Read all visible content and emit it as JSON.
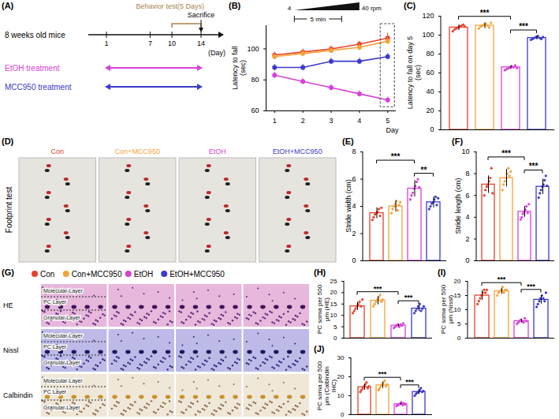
{
  "groups": [
    {
      "name": "Con",
      "color": "#e8412c"
    },
    {
      "name": "Con+MCC950",
      "color": "#f5a23a"
    },
    {
      "name": "EtOH",
      "color": "#d93fd9"
    },
    {
      "name": "EtOH+MCC950",
      "color": "#3b3bcc"
    }
  ],
  "timeline": {
    "panel": "(A)",
    "subject": "8 weeks old mice",
    "days": [
      1,
      7,
      10,
      14
    ],
    "day_label": "(Day)",
    "behavior": "Behavior test(5 Days)",
    "behavior_days": [
      10,
      14
    ],
    "end": "Sacrifice",
    "treatments": [
      {
        "name": "EtOH treatment",
        "color": "#d93fd9",
        "days": [
          1,
          14
        ]
      },
      {
        "name": "MCC950 treatment",
        "color": "#3b3bcc",
        "days": [
          1,
          14
        ]
      }
    ]
  },
  "chart_data": [
    {
      "panel": "(B)",
      "type": "line",
      "x_label": "Day",
      "y_label": "Latency to fall (sec)",
      "x": [
        1,
        2,
        3,
        4,
        5
      ],
      "xlim": [
        0.7,
        5.3
      ],
      "xticks": [
        1,
        2,
        3,
        4,
        5
      ],
      "ylim": [
        60,
        115
      ],
      "yticks": [
        60,
        80,
        100
      ],
      "marker": "circle",
      "speed": [
        "4",
        "40 rpm"
      ],
      "duration": "5 min",
      "series": [
        {
          "name": "Con",
          "color": "#e8412c",
          "values": [
            96,
            98,
            100,
            103,
            107
          ],
          "errors": [
            2,
            2,
            2,
            2,
            3
          ]
        },
        {
          "name": "Con+MCC950",
          "color": "#f5a23a",
          "values": [
            95,
            97,
            99,
            101,
            105
          ],
          "errors": [
            2,
            2,
            2,
            2,
            2
          ]
        },
        {
          "name": "EtOH",
          "color": "#d93fd9",
          "values": [
            83,
            79,
            75,
            71,
            67
          ],
          "errors": [
            2,
            2,
            2,
            2,
            2
          ]
        },
        {
          "name": "EtOH+MCC950",
          "color": "#3b3bcc",
          "values": [
            88,
            88,
            92,
            92,
            95
          ],
          "errors": [
            2,
            2,
            2,
            2,
            2
          ]
        }
      ]
    },
    {
      "panel": "(C)",
      "type": "bar",
      "y_label": "Latency to fall on day 5 (sec)",
      "categories": [
        "Con",
        "Con+MCC950",
        "EtOH",
        "EtOH+MCC950"
      ],
      "values": [
        108,
        110,
        66,
        97
      ],
      "errors": [
        3,
        3,
        2,
        2
      ],
      "points": [
        [
          104,
          106,
          107,
          108,
          109,
          110,
          111,
          109
        ],
        [
          107,
          109,
          110,
          111,
          112,
          110,
          108,
          113
        ],
        [
          63,
          64,
          65,
          66,
          67,
          66,
          68,
          65
        ],
        [
          95,
          96,
          97,
          98,
          99,
          97,
          96,
          98
        ]
      ],
      "colors": [
        "#e8412c",
        "#f5a23a",
        "#d93fd9",
        "#3b3bcc"
      ],
      "ylim": [
        0,
        120
      ],
      "yticks": [
        0,
        20,
        40,
        60,
        80,
        100,
        120
      ],
      "tick_labels": "y",
      "significance": [
        {
          "from": "Con",
          "to": "EtOH",
          "label": "***"
        },
        {
          "from": "EtOH",
          "to": "EtOH+MCC950",
          "label": "***"
        }
      ]
    },
    {
      "panel": "(E)",
      "type": "bar",
      "y_label": "Stride width (cm)",
      "categories": [
        "Con",
        "Con+MCC950",
        "EtOH",
        "EtOH+MCC950"
      ],
      "values": [
        3.5,
        4.0,
        5.3,
        4.3
      ],
      "errors": [
        0.4,
        0.4,
        0.6,
        0.4
      ],
      "points": [
        [
          3.0,
          3.2,
          3.4,
          3.5,
          3.6,
          3.8,
          3.3,
          3.9
        ],
        [
          3.5,
          3.8,
          4.0,
          4.2,
          4.4,
          3.7,
          4.1,
          4.3
        ],
        [
          4.5,
          4.8,
          5.0,
          5.3,
          5.5,
          5.8,
          6.0,
          5.4
        ],
        [
          3.8,
          4.0,
          4.2,
          4.3,
          4.5,
          4.7,
          4.1,
          4.6
        ]
      ],
      "colors": [
        "#e8412c",
        "#f5a23a",
        "#d93fd9",
        "#3b3bcc"
      ],
      "ylim": [
        0,
        8
      ],
      "yticks": [
        0,
        2,
        4,
        6,
        8
      ],
      "tick_labels": "y",
      "significance": [
        {
          "from": "Con",
          "to": "EtOH",
          "label": "***"
        },
        {
          "from": "EtOH",
          "to": "EtOH+MCC950",
          "label": "**"
        }
      ]
    },
    {
      "panel": "(F)",
      "type": "bar",
      "y_label": "Stride length (cm)",
      "categories": [
        "Con",
        "Con+MCC950",
        "EtOH",
        "EtOH+MCC950"
      ],
      "values": [
        7.0,
        7.6,
        4.5,
        6.8
      ],
      "errors": [
        0.8,
        0.8,
        0.5,
        0.7
      ],
      "points": [
        [
          6.0,
          6.5,
          6.8,
          7.0,
          7.3,
          7.6,
          8.5,
          6.2
        ],
        [
          6.5,
          7.0,
          7.3,
          7.6,
          8.0,
          8.5,
          7.8,
          8.2
        ],
        [
          3.8,
          4.0,
          4.3,
          4.5,
          4.7,
          5.0,
          4.4,
          5.2
        ],
        [
          5.8,
          6.2,
          6.5,
          6.8,
          7.0,
          7.4,
          7.8,
          6.9
        ]
      ],
      "colors": [
        "#e8412c",
        "#f5a23a",
        "#d93fd9",
        "#3b3bcc"
      ],
      "ylim": [
        0,
        10
      ],
      "yticks": [
        0,
        2,
        4,
        6,
        8,
        10
      ],
      "tick_labels": "y",
      "significance": [
        {
          "from": "Con",
          "to": "EtOH",
          "label": "***"
        },
        {
          "from": "EtOH",
          "to": "EtOH+MCC950",
          "label": "***"
        }
      ]
    },
    {
      "panel": "(H)",
      "type": "bar",
      "y_label": "PC soma per 500 μm (HE)",
      "categories": [
        "Con",
        "Con+MCC950",
        "EtOH",
        "EtOH+MCC950"
      ],
      "values": [
        14,
        16.5,
        5.5,
        13
      ],
      "errors": [
        1.8,
        1.8,
        0.6,
        1.3
      ],
      "points": [
        [
          11,
          12,
          13,
          14,
          15,
          16,
          14,
          17
        ],
        [
          14,
          15,
          16,
          17,
          18,
          19,
          16,
          17
        ],
        [
          4.5,
          5,
          5.5,
          6,
          5,
          6,
          5.5,
          6.5
        ],
        [
          11,
          12,
          13,
          14,
          15,
          12,
          13,
          14
        ]
      ],
      "colors": [
        "#e8412c",
        "#f5a23a",
        "#d93fd9",
        "#3b3bcc"
      ],
      "ylim": [
        0,
        25
      ],
      "yticks": [
        0,
        5,
        10,
        15,
        20,
        25
      ],
      "tick_labels": "y",
      "significance": [
        {
          "from": "Con",
          "to": "EtOH",
          "label": "***"
        },
        {
          "from": "EtOH",
          "to": "EtOH+MCC950",
          "label": "***"
        }
      ]
    },
    {
      "panel": "(I)",
      "type": "bar",
      "y_label": "PC soma per 500 μm (Nissl)",
      "categories": [
        "Con",
        "Con+MCC950",
        "EtOH",
        "EtOH+MCC950"
      ],
      "values": [
        15,
        16.5,
        6,
        13.5
      ],
      "errors": [
        1.7,
        1,
        0.6,
        1.5
      ],
      "points": [
        [
          12,
          13,
          14,
          15,
          16,
          17,
          16,
          17
        ],
        [
          15,
          16,
          16.5,
          17,
          18,
          16,
          17,
          17
        ],
        [
          5,
          5.5,
          6,
          6.5,
          6,
          5.5,
          7,
          6
        ],
        [
          11,
          12,
          13,
          14,
          15,
          14,
          13,
          16
        ]
      ],
      "colors": [
        "#e8412c",
        "#f5a23a",
        "#d93fd9",
        "#3b3bcc"
      ],
      "ylim": [
        0,
        20
      ],
      "yticks": [
        0,
        5,
        10,
        15,
        20
      ],
      "tick_labels": "y",
      "significance": [
        {
          "from": "Con",
          "to": "EtOH",
          "label": "***"
        },
        {
          "from": "EtOH",
          "to": "EtOH+MCC950",
          "label": "***"
        }
      ]
    },
    {
      "panel": "(J)",
      "type": "bar",
      "y_label": "PC soma per 500 μm (Calbindin IHC)",
      "categories": [
        "Con",
        "Con+MCC950",
        "EtOH",
        "EtOH+MCC950"
      ],
      "values": [
        14.5,
        15.5,
        5.5,
        12
      ],
      "errors": [
        1.6,
        1.6,
        0.6,
        1.2
      ],
      "points": [
        [
          12,
          13,
          14,
          15,
          16,
          17,
          14,
          15
        ],
        [
          13,
          14,
          15,
          16,
          17,
          18,
          15,
          16
        ],
        [
          4.5,
          5,
          5.5,
          6,
          6.5,
          5,
          6,
          5.5
        ],
        [
          10,
          11,
          11.5,
          12,
          13,
          14,
          12,
          12.5
        ]
      ],
      "colors": [
        "#e8412c",
        "#f5a23a",
        "#d93fd9",
        "#3b3bcc"
      ],
      "ylim": [
        0,
        30
      ],
      "yticks": [
        0,
        10,
        20,
        30
      ],
      "tick_labels": "y",
      "significance": [
        {
          "from": "Con",
          "to": "EtOH",
          "label": "***"
        },
        {
          "from": "EtOH",
          "to": "EtOH+MCC950",
          "label": "***"
        }
      ]
    }
  ],
  "footprint": {
    "panel": "(D)",
    "title": "Footprint test"
  },
  "histology": {
    "panel": "(G)",
    "stains": [
      "HE",
      "Nissl",
      "Calbindin"
    ],
    "layers": [
      "Molecular Layer",
      "PC Layer",
      "Granular Layer"
    ]
  }
}
